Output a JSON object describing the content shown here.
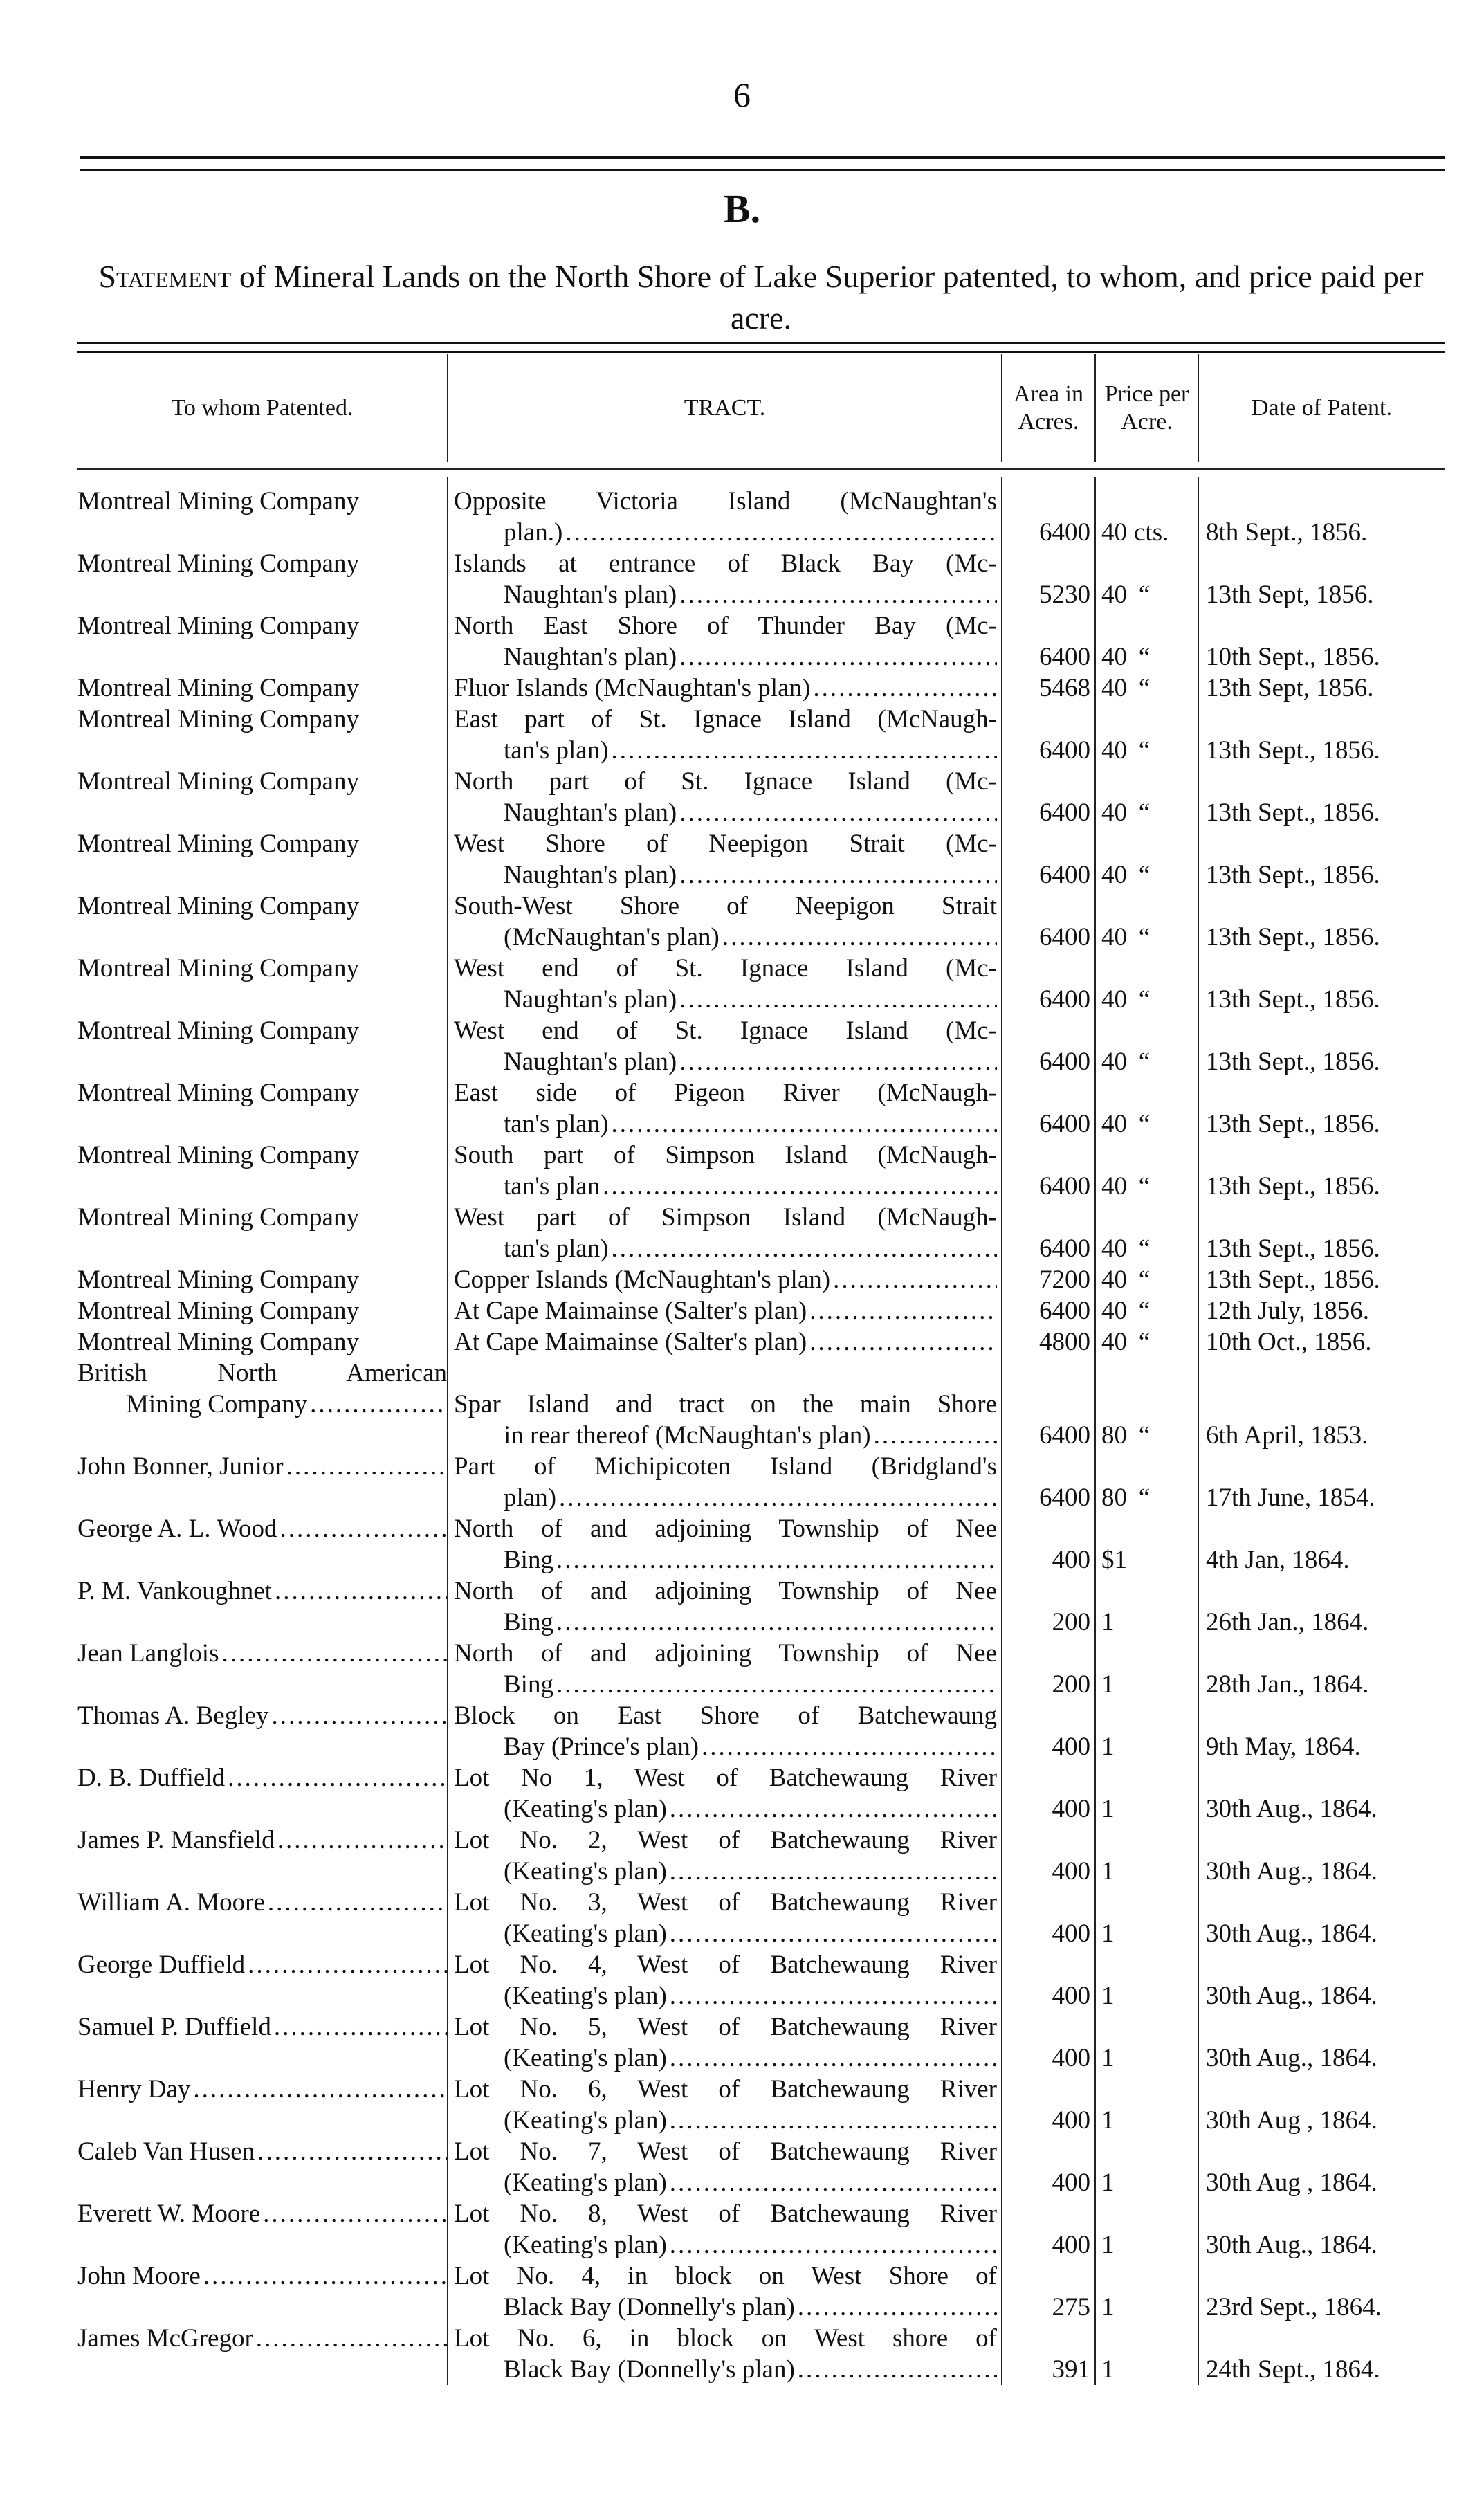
{
  "page_number": "6",
  "section": "B.",
  "title": {
    "lead": "Statement",
    "rest": " of Mineral Lands on the North Shore of Lake Superior patented, to whom, and price paid per acre."
  },
  "columns": {
    "name": "To whom Patented.",
    "tract": "TRACT.",
    "area": "Area in Acres.",
    "price": "Price per Acre.",
    "date": "Date of Patent."
  },
  "rows": [
    {
      "name": [
        "Montreal Mining Company"
      ],
      "tract": [
        "Opposite Victoria Island (McNaughtan's",
        "plan.)"
      ],
      "area": "6400",
      "price": "40",
      "price_unit": "cts.",
      "date": "8th Sept., 1856."
    },
    {
      "name": [
        "Montreal Mining Company"
      ],
      "tract": [
        "Islands at entrance of Black Bay (Mc-",
        "Naughtan's plan)"
      ],
      "area": "5230",
      "price": "40",
      "price_unit": "“",
      "date": "13th Sept, 1856."
    },
    {
      "name": [
        "Montreal Mining Company"
      ],
      "tract": [
        "North East Shore of Thunder Bay (Mc-",
        "Naughtan's plan)"
      ],
      "area": "6400",
      "price": "40",
      "price_unit": "“",
      "date": "10th Sept., 1856."
    },
    {
      "name": [
        "Montreal Mining Company"
      ],
      "tract": [
        "Fluor Islands (McNaughtan's plan)"
      ],
      "area": "5468",
      "price": "40",
      "price_unit": "“",
      "date": "13th Sept, 1856."
    },
    {
      "name": [
        "Montreal Mining Company"
      ],
      "tract": [
        "East part of St. Ignace Island (McNaugh-",
        "tan's plan)"
      ],
      "area": "6400",
      "price": "40",
      "price_unit": "“",
      "date": "13th Sept., 1856."
    },
    {
      "name": [
        "Montreal Mining Company"
      ],
      "tract": [
        "North part of St. Ignace Island (Mc-",
        "Naughtan's plan)"
      ],
      "area": "6400",
      "price": "40",
      "price_unit": "“",
      "date": "13th Sept., 1856."
    },
    {
      "name": [
        "Montreal Mining Company"
      ],
      "tract": [
        "West Shore of Neepigon Strait (Mc-",
        "Naughtan's plan)"
      ],
      "area": "6400",
      "price": "40",
      "price_unit": "“",
      "date": "13th Sept., 1856."
    },
    {
      "name": [
        "Montreal Mining Company"
      ],
      "tract": [
        "South-West Shore of Neepigon Strait",
        "(McNaughtan's plan)"
      ],
      "area": "6400",
      "price": "40",
      "price_unit": "“",
      "date": "13th Sept., 1856."
    },
    {
      "name": [
        "Montreal Mining Company"
      ],
      "tract": [
        "West end of St. Ignace Island (Mc-",
        "Naughtan's plan)"
      ],
      "area": "6400",
      "price": "40",
      "price_unit": "“",
      "date": "13th Sept., 1856."
    },
    {
      "name": [
        "Montreal Mining Company"
      ],
      "tract": [
        "West end of St. Ignace Island (Mc-",
        "Naughtan's plan)"
      ],
      "area": "6400",
      "price": "40",
      "price_unit": "“",
      "date": "13th Sept., 1856."
    },
    {
      "name": [
        "Montreal Mining Company"
      ],
      "tract": [
        "East side of Pigeon River (McNaugh-",
        "tan's plan)"
      ],
      "area": "6400",
      "price": "40",
      "price_unit": "“",
      "date": "13th Sept., 1856."
    },
    {
      "name": [
        "Montreal Mining Company"
      ],
      "tract": [
        "South part of Simpson Island (McNaugh-",
        "tan's plan"
      ],
      "area": "6400",
      "price": "40",
      "price_unit": "“",
      "date": "13th Sept., 1856."
    },
    {
      "name": [
        "Montreal Mining Company"
      ],
      "tract": [
        "West part of Simpson Island (McNaugh-",
        "tan's plan)"
      ],
      "area": "6400",
      "price": "40",
      "price_unit": "“",
      "date": "13th Sept., 1856."
    },
    {
      "name": [
        "Montreal Mining Company"
      ],
      "tract": [
        "Copper Islands (McNaughtan's plan)"
      ],
      "area": "7200",
      "price": "40",
      "price_unit": "“",
      "date": "13th Sept., 1856."
    },
    {
      "name": [
        "Montreal Mining Company"
      ],
      "tract": [
        "At Cape Maimainse (Salter's plan)"
      ],
      "area": "6400",
      "price": "40",
      "price_unit": "“",
      "date": "12th July, 1856."
    },
    {
      "name": [
        "Montreal Mining Company"
      ],
      "tract": [
        "At Cape Maimainse (Salter's plan)"
      ],
      "area": "4800",
      "price": "40",
      "price_unit": "“",
      "date": "10th Oct., 1856."
    },
    {
      "name": [
        "British North American",
        "Mining Company"
      ],
      "tract": [
        "",
        "Spar Island and tract on the main Shore",
        "in rear thereof (McNaughtan's plan)"
      ],
      "area": "6400",
      "price": "80",
      "price_unit": "“",
      "date": "6th April, 1853."
    },
    {
      "name": [
        "John Bonner, Junior"
      ],
      "tract": [
        "Part of Michipicoten Island (Bridgland's",
        "plan)"
      ],
      "area": "6400",
      "price": "80",
      "price_unit": "“",
      "date": "17th June, 1854."
    },
    {
      "name": [
        "George A. L. Wood"
      ],
      "tract": [
        "North of and adjoining Township of Nee",
        "Bing"
      ],
      "area": "400",
      "price": "$1",
      "price_unit": "",
      "date": "4th Jan, 1864."
    },
    {
      "name": [
        "P. M. Vankoughnet"
      ],
      "tract": [
        "North of and adjoining Township of Nee",
        "Bing"
      ],
      "area": "200",
      "price": "1",
      "price_unit": "",
      "date": "26th Jan., 1864."
    },
    {
      "name": [
        "Jean Langlois"
      ],
      "tract": [
        "North of and adjoining Township of Nee",
        "Bing"
      ],
      "area": "200",
      "price": "1",
      "price_unit": "",
      "date": "28th Jan., 1864."
    },
    {
      "name": [
        "Thomas A. Begley"
      ],
      "tract": [
        "Block on East Shore of Batchewaung",
        "Bay (Prince's plan)"
      ],
      "area": "400",
      "price": "1",
      "price_unit": "",
      "date": "9th May, 1864."
    },
    {
      "name": [
        "D. B. Duffield"
      ],
      "tract": [
        "Lot No 1, West of Batchewaung River",
        "(Keating's plan)"
      ],
      "area": "400",
      "price": "1",
      "price_unit": "",
      "date": "30th Aug., 1864."
    },
    {
      "name": [
        "James P. Mansfield"
      ],
      "tract": [
        "Lot No. 2, West of Batchewaung River",
        "(Keating's plan)"
      ],
      "area": "400",
      "price": "1",
      "price_unit": "",
      "date": "30th Aug., 1864."
    },
    {
      "name": [
        "William A. Moore"
      ],
      "tract": [
        "Lot No. 3, West of Batchewaung River",
        "(Keating's plan)"
      ],
      "area": "400",
      "price": "1",
      "price_unit": "",
      "date": "30th Aug., 1864."
    },
    {
      "name": [
        "George Duffield"
      ],
      "tract": [
        "Lot No. 4, West of Batchewaung River",
        "(Keating's plan)"
      ],
      "area": "400",
      "price": "1",
      "price_unit": "",
      "date": "30th Aug., 1864."
    },
    {
      "name": [
        "Samuel P. Duffield"
      ],
      "tract": [
        "Lot No. 5, West of Batchewaung River",
        "(Keating's plan)"
      ],
      "area": "400",
      "price": "1",
      "price_unit": "",
      "date": "30th Aug., 1864."
    },
    {
      "name": [
        "Henry Day"
      ],
      "tract": [
        "Lot No. 6, West of Batchewaung River",
        "(Keating's plan)"
      ],
      "area": "400",
      "price": "1",
      "price_unit": "",
      "date": "30th Aug , 1864."
    },
    {
      "name": [
        "Caleb Van Husen"
      ],
      "tract": [
        "Lot No. 7, West of Batchewaung River",
        "(Keating's plan)"
      ],
      "area": "400",
      "price": "1",
      "price_unit": "",
      "date": "30th Aug , 1864."
    },
    {
      "name": [
        "Everett W. Moore"
      ],
      "tract": [
        "Lot No. 8, West of Batchewaung River",
        "(Keating's plan)"
      ],
      "area": "400",
      "price": "1",
      "price_unit": "",
      "date": "30th Aug., 1864."
    },
    {
      "name": [
        "John Moore"
      ],
      "tract": [
        "Lot No. 4, in block on West Shore of",
        "Black Bay (Donnelly's plan)"
      ],
      "area": "275",
      "price": "1",
      "price_unit": "",
      "date": "23rd Sept., 1864."
    },
    {
      "name": [
        "James McGregor"
      ],
      "tract": [
        "Lot No. 6, in block on West shore of",
        "Black Bay (Donnelly's plan)"
      ],
      "area": "391",
      "price": "1",
      "price_unit": "",
      "date": "24th Sept., 1864."
    }
  ]
}
